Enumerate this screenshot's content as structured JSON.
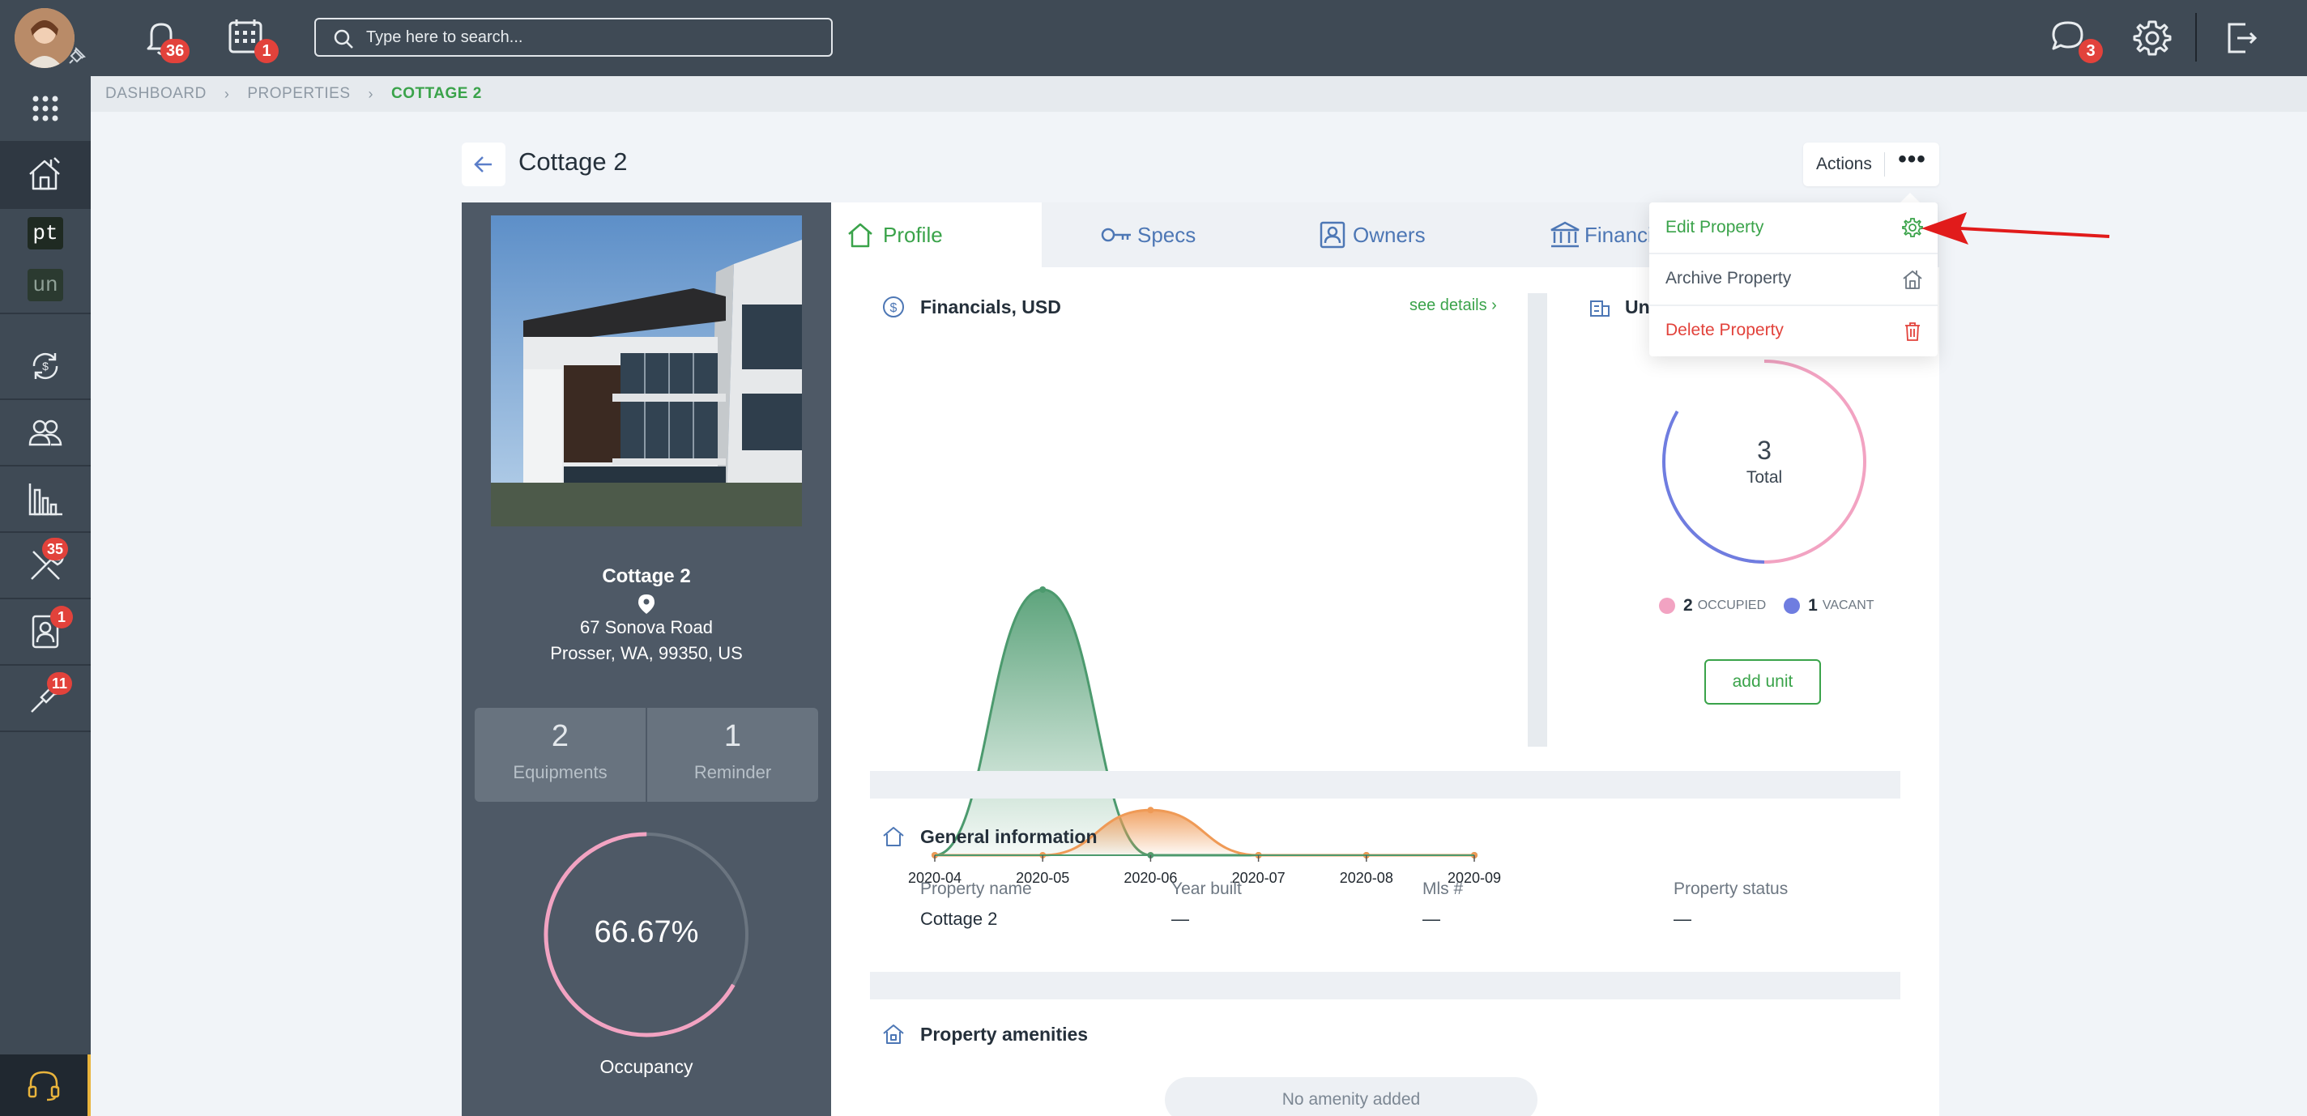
{
  "topbar": {
    "notifications_count": "36",
    "calendar_count": "1",
    "search_placeholder": "Type here to search...",
    "messages_count": "3"
  },
  "sidebar": {
    "items": [
      {
        "name": "apps-grid-icon"
      },
      {
        "name": "properties-icon",
        "active": true
      },
      {
        "name": "pt",
        "label": "pt"
      },
      {
        "name": "un",
        "label": "un"
      },
      {
        "name": "transactions-icon"
      },
      {
        "name": "people-icon"
      },
      {
        "name": "reports-icon"
      },
      {
        "name": "maintenance-icon",
        "badge": "35"
      },
      {
        "name": "contacts-icon",
        "badge": "1"
      },
      {
        "name": "tools-icon",
        "badge": "11"
      }
    ]
  },
  "breadcrumb": {
    "items": [
      "DASHBOARD",
      "PROPERTIES"
    ],
    "current": "COTTAGE 2"
  },
  "header": {
    "title": "Cottage 2",
    "actions_label": "Actions"
  },
  "property": {
    "name": "Cottage 2",
    "address_line1": "67 Sonova Road",
    "address_line2": "Prosser, WA, 99350, US",
    "equipments_count": "2",
    "equipments_label": "Equipments",
    "reminder_count": "1",
    "reminder_label": "Reminder",
    "occupancy_value": "66.67%",
    "occupancy_fraction": 0.6667,
    "occupancy_label": "Occupancy"
  },
  "tabs": [
    {
      "label": "Profile",
      "active": true
    },
    {
      "label": "Specs"
    },
    {
      "label": "Owners"
    },
    {
      "label": "Financia"
    }
  ],
  "financials": {
    "title": "Financials, USD",
    "see_details": "see details",
    "chart_data": {
      "type": "area",
      "x": [
        "2020-04",
        "2020-05",
        "2020-06",
        "2020-07",
        "2020-08",
        "2020-09"
      ],
      "series": [
        {
          "values": [
            0,
            100,
            0,
            0,
            0,
            0
          ],
          "color": "#4c9a6e"
        },
        {
          "values": [
            0,
            0,
            17,
            0,
            0,
            0
          ],
          "color": "#ef9a56"
        }
      ],
      "xlabel": "",
      "ylabel": ""
    }
  },
  "units": {
    "title": "Un",
    "total": "3",
    "total_label": "Total",
    "occupied_count": "2",
    "occupied_label": "OCCUPIED",
    "occupied_color": "#f2a3c2",
    "vacant_count": "1",
    "vacant_label": "VACANT",
    "vacant_color": "#6f7de0",
    "add_unit_label": "add unit"
  },
  "general_info": {
    "title": "General information",
    "fields": [
      {
        "label": "Property name",
        "value": "Cottage 2"
      },
      {
        "label": "Year built",
        "value": "—"
      },
      {
        "label": "Mls #",
        "value": "—"
      },
      {
        "label": "Property status",
        "value": "—"
      }
    ]
  },
  "amenities": {
    "title": "Property amenities",
    "empty": "No amenity added"
  },
  "dropdown": {
    "edit": "Edit Property",
    "archive": "Archive Property",
    "delete": "Delete Property"
  },
  "colors": {
    "accent_green": "#3aa34a",
    "danger_red": "#e2423b",
    "sidebar_bg": "#3f4a55"
  }
}
